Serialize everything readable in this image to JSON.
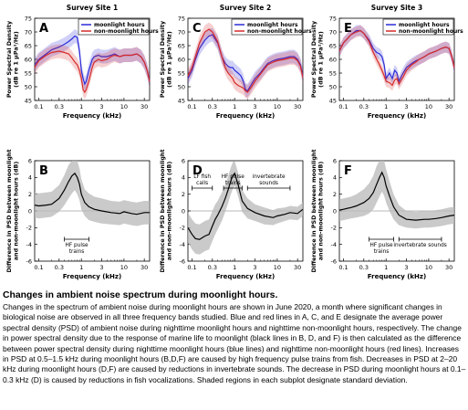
{
  "chart_data": [
    {
      "panel": "A",
      "type": "line",
      "title": "Survey Site 1",
      "xlabel": "Frequency (kHz)",
      "ylabel": [
        "Power Spectral Density",
        "(dB re 1 μPa²/Hz)"
      ],
      "xlim": [
        0.08,
        40
      ],
      "ylim": [
        45,
        75
      ],
      "xscale": "log",
      "yticks": [
        45,
        50,
        55,
        60,
        65,
        70,
        75
      ],
      "xticks": [
        "0.1",
        "0.3",
        "1",
        "3",
        "10",
        "30"
      ],
      "legend": "top-right",
      "series": [
        {
          "name": "moonlight hours",
          "color": "#2b2bd9",
          "x": [
            0.08,
            0.1,
            0.15,
            0.2,
            0.3,
            0.4,
            0.5,
            0.6,
            0.7,
            0.8,
            0.9,
            1.0,
            1.1,
            1.2,
            1.3,
            1.5,
            1.8,
            2.0,
            2.5,
            3,
            4,
            5,
            6,
            8,
            10,
            15,
            20,
            25,
            30,
            35,
            40
          ],
          "y": [
            58,
            60,
            62,
            63.5,
            64.5,
            65.5,
            66.5,
            67.5,
            68.5,
            68,
            63,
            56,
            53,
            51,
            52,
            56,
            60,
            61,
            61.5,
            61,
            61,
            61.5,
            62,
            61,
            61.5,
            61.5,
            62,
            61,
            59,
            56,
            52
          ],
          "sd": 2.5
        },
        {
          "name": "non-moonlight hours",
          "color": "#d62a2a",
          "x": [
            0.08,
            0.1,
            0.15,
            0.2,
            0.3,
            0.4,
            0.5,
            0.6,
            0.7,
            0.8,
            0.9,
            1.0,
            1.1,
            1.2,
            1.3,
            1.5,
            1.8,
            2.0,
            2.5,
            3,
            4,
            5,
            6,
            8,
            10,
            15,
            20,
            25,
            30,
            35,
            40
          ],
          "y": [
            57,
            59.5,
            61.5,
            62.5,
            63,
            62.5,
            62,
            60.5,
            59,
            58,
            56,
            53,
            49,
            48,
            49,
            52,
            57,
            59,
            60,
            59.5,
            60,
            61,
            61.5,
            61,
            61.5,
            61.5,
            62,
            61,
            59,
            56,
            52
          ],
          "sd": 2.5
        }
      ]
    },
    {
      "panel": "C",
      "type": "line",
      "title": "Survey Site 2",
      "xlabel": "Frequency (kHz)",
      "ylabel": [
        "Power Spectral Density",
        "(dB re 1 μPa²/Hz)"
      ],
      "xlim": [
        0.08,
        40
      ],
      "ylim": [
        45,
        75
      ],
      "xscale": "log",
      "yticks": [
        45,
        50,
        55,
        60,
        65,
        70,
        75
      ],
      "xticks": [
        "0.1",
        "0.3",
        "1",
        "3",
        "10",
        "30"
      ],
      "legend": "top-right",
      "series": [
        {
          "name": "moonlight hours",
          "color": "#2b2bd9",
          "x": [
            0.08,
            0.1,
            0.12,
            0.15,
            0.2,
            0.25,
            0.3,
            0.4,
            0.5,
            0.6,
            0.7,
            0.8,
            0.9,
            1.0,
            1.2,
            1.4,
            1.6,
            1.8,
            2.0,
            2.5,
            3,
            4,
            5,
            6,
            8,
            10,
            15,
            20,
            25,
            30,
            35,
            40
          ],
          "y": [
            53,
            56,
            60,
            64,
            67,
            68.5,
            69,
            66,
            61,
            58.5,
            57.5,
            57,
            57,
            56,
            55,
            54,
            52,
            49,
            48.5,
            51,
            53,
            55,
            57,
            58.5,
            59.5,
            60,
            60.5,
            61,
            61,
            60,
            58,
            54
          ],
          "sd": 2.5
        },
        {
          "name": "non-moonlight hours",
          "color": "#d62a2a",
          "x": [
            0.08,
            0.1,
            0.12,
            0.15,
            0.2,
            0.25,
            0.3,
            0.4,
            0.5,
            0.6,
            0.7,
            0.8,
            0.9,
            1.0,
            1.2,
            1.4,
            1.6,
            1.8,
            2.0,
            2.5,
            3,
            4,
            5,
            6,
            8,
            10,
            15,
            20,
            25,
            30,
            35,
            40
          ],
          "y": [
            54,
            57,
            61,
            66,
            70,
            71,
            70,
            66.5,
            61,
            57,
            55,
            54,
            53,
            51.5,
            50.5,
            50,
            49.5,
            48.5,
            48,
            50,
            52,
            54.5,
            56.5,
            58,
            59,
            59.5,
            60,
            60.5,
            60.5,
            59.5,
            57.5,
            53.5
          ],
          "sd": 2.5
        }
      ]
    },
    {
      "panel": "E",
      "type": "line",
      "title": "Survey Site 3",
      "xlabel": "Frequency (kHz)",
      "ylabel": [
        "Power Spectral Density",
        "(dB re 1 μPa²/Hz)"
      ],
      "xlim": [
        0.08,
        40
      ],
      "ylim": [
        45,
        75
      ],
      "xscale": "log",
      "yticks": [
        45,
        50,
        55,
        60,
        65,
        70,
        75
      ],
      "xticks": [
        "0.1",
        "0.3",
        "1",
        "3",
        "10",
        "30"
      ],
      "legend": "top-right",
      "series": [
        {
          "name": "moonlight hours",
          "color": "#2b2bd9",
          "x": [
            0.08,
            0.1,
            0.15,
            0.2,
            0.25,
            0.3,
            0.4,
            0.5,
            0.6,
            0.7,
            0.8,
            0.9,
            1.0,
            1.2,
            1.4,
            1.6,
            1.8,
            2.0,
            2.5,
            3,
            4,
            5,
            6,
            8,
            10,
            15,
            20,
            25,
            30,
            35,
            40
          ],
          "y": [
            63,
            66,
            69,
            70.5,
            70.5,
            69.5,
            67,
            64,
            62.5,
            62,
            61,
            58,
            53,
            55,
            53,
            56,
            55,
            52,
            55,
            57,
            58.5,
            59.5,
            60,
            61,
            62,
            63,
            64,
            64.5,
            64,
            61,
            57
          ],
          "sd": 2.0
        },
        {
          "name": "non-moonlight hours",
          "color": "#d62a2a",
          "x": [
            0.08,
            0.1,
            0.15,
            0.2,
            0.25,
            0.3,
            0.4,
            0.5,
            0.6,
            0.7,
            0.8,
            0.9,
            1.0,
            1.2,
            1.4,
            1.6,
            1.8,
            2.0,
            2.5,
            3,
            4,
            5,
            6,
            8,
            10,
            15,
            20,
            25,
            30,
            35,
            40
          ],
          "y": [
            63,
            66,
            69,
            70,
            70.5,
            69.5,
            66.5,
            62.5,
            60,
            58,
            56,
            54,
            52,
            51.5,
            50.5,
            52.5,
            53,
            51,
            53.5,
            56,
            58,
            59,
            60,
            61,
            62,
            63,
            64,
            64.5,
            64,
            61,
            57
          ],
          "sd": 2.0
        }
      ]
    },
    {
      "panel": "B",
      "type": "line",
      "xlabel": "Frequency (kHz)",
      "ylabel": [
        "Difference in PSD between moonlight",
        "and non-moonlight hours (dB)"
      ],
      "xlim": [
        0.08,
        40
      ],
      "ylim": [
        -6,
        6
      ],
      "xscale": "log",
      "yticks": [
        -6,
        -4,
        -2,
        0,
        2,
        4,
        6
      ],
      "xticks": [
        "0.1",
        "0.3",
        "1",
        "3",
        "10",
        "30"
      ],
      "series": [
        {
          "name": "",
          "color": "#000000",
          "x": [
            0.08,
            0.1,
            0.15,
            0.2,
            0.3,
            0.4,
            0.5,
            0.6,
            0.7,
            0.8,
            0.9,
            1.0,
            1.2,
            1.5,
            2,
            3,
            5,
            8,
            10,
            15,
            20,
            30,
            40
          ],
          "y": [
            0.7,
            0.6,
            0.7,
            0.8,
            1.5,
            2.5,
            3.5,
            4.2,
            4.5,
            4.0,
            3.2,
            2.0,
            1.0,
            0.5,
            0.2,
            0.0,
            -0.2,
            -0.3,
            -0.1,
            -0.3,
            -0.4,
            -0.2,
            -0.2
          ],
          "sd": [
            1.5,
            1.5,
            1.5,
            1.5,
            1.6,
            1.8,
            2.0,
            2.1,
            2.0,
            2.0,
            1.9,
            1.8,
            1.6,
            1.6,
            1.5,
            1.5,
            1.4,
            1.4,
            1.4,
            1.4,
            1.4,
            1.4,
            1.4
          ]
        }
      ],
      "annotations": [
        {
          "text": [
            "HF pulse",
            "trains"
          ],
          "x_range": [
            0.4,
            1.5
          ]
        }
      ]
    },
    {
      "panel": "D",
      "type": "line",
      "xlabel": "Frequency (kHz)",
      "ylabel": [
        "Difference in PSD between moonlight",
        "and non-moonlight hours (dB)"
      ],
      "xlim": [
        0.08,
        40
      ],
      "ylim": [
        -6,
        6
      ],
      "xscale": "log",
      "yticks": [
        -6,
        -4,
        -2,
        0,
        2,
        4,
        6
      ],
      "xticks": [
        "0.1",
        "0.3",
        "1",
        "3",
        "10",
        "30"
      ],
      "series": [
        {
          "name": "",
          "color": "#000000",
          "x": [
            0.08,
            0.1,
            0.12,
            0.15,
            0.2,
            0.25,
            0.3,
            0.35,
            0.4,
            0.5,
            0.6,
            0.7,
            0.8,
            0.9,
            1.0,
            1.2,
            1.5,
            2,
            3,
            5,
            8,
            10,
            15,
            20,
            30,
            40
          ],
          "y": [
            -2.0,
            -2.8,
            -3.3,
            -3.4,
            -3.0,
            -2.8,
            -1.8,
            -1.0,
            -0.5,
            0.5,
            1.5,
            2.5,
            3.5,
            4.2,
            4.5,
            3.2,
            1.2,
            0.3,
            -0.2,
            -0.6,
            -0.8,
            -0.6,
            -0.4,
            -0.2,
            -0.3,
            0.2
          ],
          "sd": [
            1.8,
            1.8,
            1.8,
            1.8,
            1.8,
            1.8,
            1.8,
            1.8,
            1.7,
            1.7,
            1.6,
            1.6,
            1.6,
            1.6,
            1.5,
            1.4,
            1.3,
            1.2,
            1.0,
            1.0,
            0.9,
            0.9,
            0.8,
            0.8,
            0.8,
            0.8
          ]
        }
      ],
      "annotations": [
        {
          "text": [
            "LF fish",
            "calls"
          ],
          "x_range": [
            0.1,
            0.3
          ]
        },
        {
          "text": [
            "HF pulse",
            "trains"
          ],
          "x_range": [
            0.55,
            1.5
          ]
        },
        {
          "text": [
            "invertebrate",
            "sounds"
          ],
          "x_range": [
            2,
            20
          ]
        }
      ]
    },
    {
      "panel": "F",
      "type": "line",
      "xlabel": "Frequency (kHz)",
      "ylabel": [
        "Difference in PSD between moonlight",
        "and non-moonlight hours (dB)"
      ],
      "xlim": [
        0.08,
        40
      ],
      "ylim": [
        -6,
        6
      ],
      "xscale": "log",
      "yticks": [
        -6,
        -4,
        -2,
        0,
        2,
        4,
        6
      ],
      "xticks": [
        "0.1",
        "0.3",
        "1",
        "3",
        "10",
        "30"
      ],
      "series": [
        {
          "name": "",
          "color": "#000000",
          "x": [
            0.08,
            0.1,
            0.15,
            0.2,
            0.3,
            0.4,
            0.5,
            0.6,
            0.7,
            0.8,
            0.9,
            1.0,
            1.2,
            1.5,
            2,
            3,
            5,
            8,
            10,
            15,
            20,
            30,
            40
          ],
          "y": [
            0.1,
            0.2,
            0.4,
            0.6,
            1.0,
            1.5,
            2.2,
            3.2,
            4.0,
            4.6,
            4.0,
            3.0,
            1.8,
            0.5,
            -0.5,
            -1.0,
            -1.1,
            -1.0,
            -1.0,
            -0.9,
            -0.8,
            -0.6,
            -0.5
          ],
          "sd": [
            1.3,
            1.3,
            1.3,
            1.4,
            1.6,
            1.8,
            2.0,
            2.2,
            2.3,
            2.3,
            2.2,
            2.0,
            1.8,
            1.5,
            1.2,
            1.0,
            1.0,
            1.0,
            1.0,
            1.0,
            1.0,
            1.0,
            1.0
          ]
        }
      ],
      "annotations": [
        {
          "text": [
            "HF pulse",
            "trains"
          ],
          "x_range": [
            0.4,
            1.5
          ]
        },
        {
          "text": [
            "invertebrate",
            "sounds"
          ],
          "x_range": [
            2,
            20
          ]
        }
      ]
    }
  ],
  "caption": {
    "title": "Changes in ambient noise spectrum during moonlight hours.",
    "text": "Changes in the spectrum of ambient noise during moonlight hours are shown in June 2020, a month where significant changes in biological noise are observed in all three frequency bands studied. Blue and red lines in A, C, and E designate the average power spectral density (PSD) of ambient noise during nighttime moonlight hours and nighttime non-moonlight hours, respectively. The change in power spectral density due to the response of marine life to moonlight (black lines in B, D, and F) is then calculated as the difference between power spectral density during nighttime moonlight hours (blue lines) and nighttime non-moonlight hours (red lines). Increases in PSD at 0.5–1.5 kHz during moonlight hours (B,D,F) are caused by high frequency pulse trains from fish. Decreases in PSD at 2–20 kHz during moonlight hours (D,F) are caused by reductions in invertebrate sounds. The decrease in PSD during moonlight hours at 0.1–0.3 kHz (D) is caused by reductions in fish vocalizations. Shaded regions in each subplot designate standard deviation."
  }
}
